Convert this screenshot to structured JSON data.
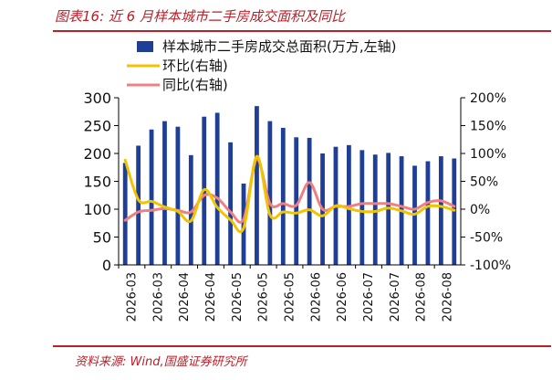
{
  "figure": {
    "title": "图表16:  近 6 月样本城市二手房成交面积及同比",
    "source": "资料来源:  Wind,国盛证券研究所"
  },
  "chart_data": {
    "type": "bar",
    "x_tick_labels": [
      "2026-03",
      "2026-03",
      "2026-04",
      "2026-04",
      "2026-05",
      "2026-05",
      "2026-05",
      "2026-06",
      "2026-06",
      "2026-07",
      "2026-07",
      "2026-08",
      "2026-08"
    ],
    "y_left": {
      "lim": [
        0,
        300
      ],
      "ticks": [
        "0",
        "50",
        "100",
        "150",
        "200",
        "250",
        "300"
      ]
    },
    "y_right": {
      "lim": [
        -100,
        200
      ],
      "ticks": [
        "-100%",
        "-50%",
        "0%",
        "50%",
        "100%",
        "150%",
        "200%"
      ]
    },
    "legend_position": "top",
    "series": [
      {
        "name": "样本城市二手房成交总面积(万方,左轴)",
        "type": "bar",
        "axis": "left",
        "color": "#1f3f97",
        "values": [
          183,
          214,
          243,
          258,
          248,
          197,
          266,
          273,
          220,
          146,
          285,
          258,
          246,
          229,
          228,
          200,
          212,
          215,
          206,
          198,
          201,
          195,
          178,
          186,
          195,
          191
        ]
      },
      {
        "name": "环比(右轴)",
        "type": "line",
        "axis": "right",
        "color": "#f0c400",
        "values": [
          88,
          17,
          14,
          4,
          -4,
          -21,
          35,
          3,
          -19,
          -34,
          95,
          -10,
          -5,
          -7,
          -1,
          -12,
          6,
          1,
          -4,
          -4,
          2,
          -3,
          -9,
          5,
          5,
          -2
        ]
      },
      {
        "name": "同比(右轴)",
        "type": "line",
        "axis": "right",
        "color": "#f08080",
        "values": [
          -20,
          -5,
          -2,
          1,
          -2,
          -5,
          25,
          20,
          -5,
          -18,
          90,
          10,
          10,
          7,
          48,
          0,
          5,
          5,
          10,
          10,
          10,
          5,
          0,
          12,
          15,
          5
        ]
      }
    ]
  }
}
